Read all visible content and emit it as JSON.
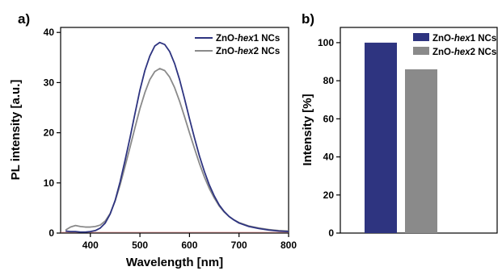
{
  "chart_data": [
    {
      "panel_label": "a)",
      "type": "line",
      "xlabel": "Wavelength [nm]",
      "ylabel": "PL intensity [a.u.]",
      "xlim": [
        340,
        800
      ],
      "ylim": [
        0,
        41
      ],
      "xticks": [
        400,
        500,
        600,
        700,
        800
      ],
      "yticks": [
        0,
        10,
        20,
        30,
        40
      ],
      "legend_position": "top-right",
      "series": [
        {
          "name": "ZnO-hex1 NCs",
          "legend_parts": [
            "ZnO-",
            "hex",
            "1 NCs"
          ],
          "color": "#2e3480",
          "x": [
            350,
            360,
            370,
            380,
            390,
            400,
            410,
            420,
            430,
            440,
            450,
            460,
            470,
            480,
            490,
            500,
            510,
            520,
            530,
            540,
            550,
            560,
            570,
            580,
            590,
            600,
            610,
            620,
            630,
            640,
            650,
            660,
            670,
            680,
            690,
            700,
            720,
            740,
            760,
            780,
            800
          ],
          "y": [
            0.4,
            0.3,
            0.3,
            0.2,
            0.2,
            0.3,
            0.5,
            1.0,
            2.0,
            3.8,
            6.5,
            10.2,
            14.5,
            19.0,
            23.8,
            28.5,
            32.4,
            35.3,
            37.3,
            38.0,
            37.6,
            36.2,
            33.8,
            30.6,
            26.8,
            22.8,
            19.0,
            15.4,
            12.3,
            9.6,
            7.4,
            5.6,
            4.3,
            3.3,
            2.6,
            2.0,
            1.3,
            0.9,
            0.6,
            0.4,
            0.3
          ]
        },
        {
          "name": "ZnO-hex2 NCs",
          "legend_parts": [
            "ZnO-",
            "hex",
            "2 NCs"
          ],
          "color": "#8a8a8a",
          "x": [
            350,
            360,
            370,
            380,
            390,
            400,
            410,
            420,
            430,
            440,
            450,
            460,
            470,
            480,
            490,
            500,
            510,
            520,
            530,
            540,
            550,
            560,
            570,
            580,
            590,
            600,
            610,
            620,
            630,
            640,
            650,
            660,
            670,
            680,
            690,
            700,
            720,
            740,
            760,
            780,
            800
          ],
          "y": [
            0.6,
            1.2,
            1.5,
            1.3,
            1.2,
            1.2,
            1.3,
            1.6,
            2.4,
            3.9,
            6.4,
            9.6,
            13.3,
            17.1,
            21.0,
            24.8,
            28.0,
            30.6,
            32.2,
            32.8,
            32.4,
            31.1,
            29.0,
            26.3,
            23.2,
            20.0,
            16.9,
            13.9,
            11.2,
            8.9,
            7.0,
            5.4,
            4.2,
            3.3,
            2.6,
            2.1,
            1.4,
            1.0,
            0.7,
            0.5,
            0.4
          ]
        }
      ]
    },
    {
      "panel_label": "b)",
      "type": "bar",
      "xlabel": "",
      "ylabel": "Intensity [%]",
      "ylim": [
        0,
        108
      ],
      "yticks": [
        0,
        20,
        40,
        60,
        80,
        100
      ],
      "legend_position": "top-right",
      "series": [
        {
          "name": "ZnO-hex1 NCs",
          "legend_parts": [
            "ZnO-",
            "hex",
            "1 NCs"
          ],
          "color": "#2e3480",
          "value": 100
        },
        {
          "name": "ZnO-hex2 NCs",
          "legend_parts": [
            "ZnO-",
            "hex",
            "2 NCs"
          ],
          "color": "#8a8a8a",
          "value": 86
        }
      ]
    }
  ]
}
